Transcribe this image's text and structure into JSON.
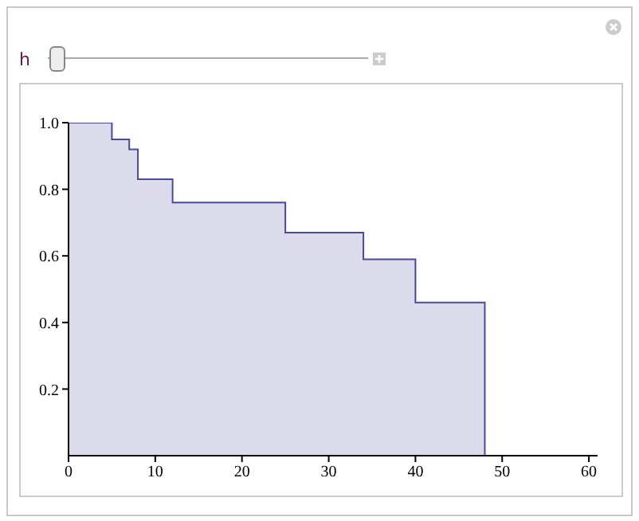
{
  "chart_data": {
    "type": "step",
    "annotations": [
      "h"
    ],
    "x": [
      0,
      5,
      7,
      8,
      12,
      25,
      34,
      40,
      48
    ],
    "series": [
      {
        "color": "#4a4a9c",
        "values": [
          1,
          0.95,
          0.92,
          0.83,
          0.76,
          0.67,
          0.59,
          0.46,
          0
        ]
      }
    ],
    "xlim": [
      0,
      61
    ],
    "xticks": [
      0,
      10,
      20,
      30,
      40,
      50,
      60
    ],
    "ylim": [
      0,
      1
    ],
    "yticks": [
      {
        "value": 0.2,
        "label": "0.2"
      },
      {
        "value": 0.4,
        "label": "0.4"
      },
      {
        "value": 0.6,
        "label": "0.6"
      },
      {
        "value": 0.8,
        "label": "0.8"
      },
      {
        "value": 1,
        "label": "1.0"
      }
    ],
    "grid": false,
    "legend": false
  }
}
